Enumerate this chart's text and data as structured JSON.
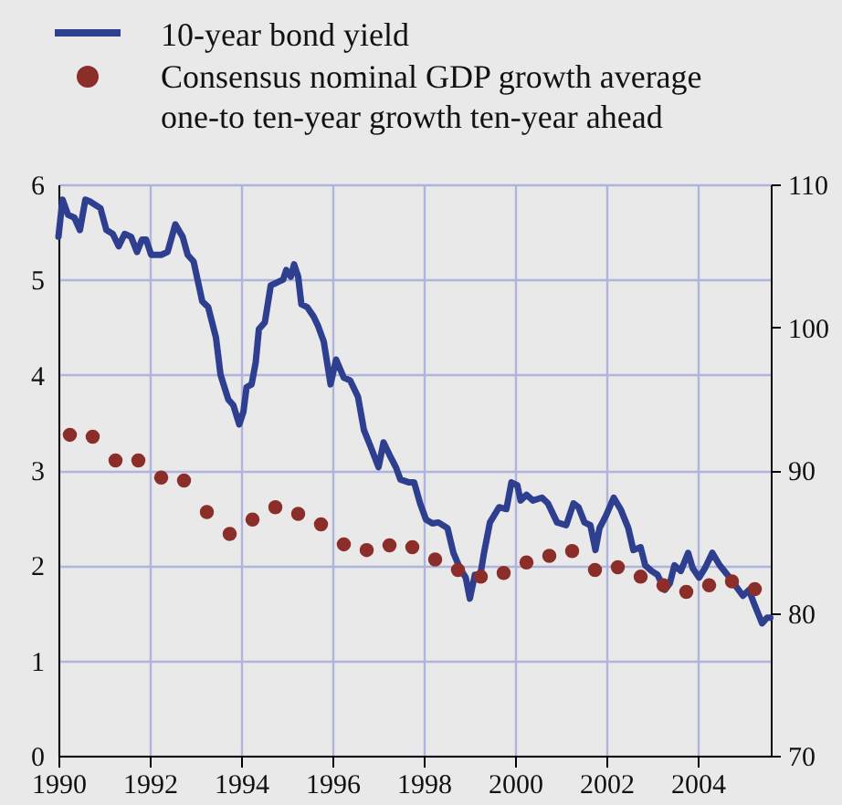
{
  "chart_data": {
    "type": "line",
    "xlim": [
      1990,
      2005.6
    ],
    "xticks": [
      1990,
      1992,
      1994,
      1996,
      1998,
      2000,
      2002,
      2004
    ],
    "ylim": [
      0,
      6
    ],
    "yticks": [
      0,
      1,
      2,
      3,
      4,
      5,
      6
    ],
    "y2lim": [
      70,
      110
    ],
    "y2ticks": [
      70,
      80,
      90,
      100,
      110
    ],
    "grid": true,
    "legend": "top left",
    "line_style": "solid",
    "series": [
      {
        "name": "10-year bond yield",
        "type": "line",
        "color": "#2e3f8f",
        "x": [
          1990.0,
          1990.09,
          1990.21,
          1990.35,
          1990.47,
          1990.59,
          1990.69,
          1990.92,
          1991.05,
          1991.19,
          1991.32,
          1991.45,
          1991.59,
          1991.72,
          1991.83,
          1991.92,
          1992.03,
          1992.25,
          1992.39,
          1992.56,
          1992.72,
          1992.83,
          1992.96,
          1993.15,
          1993.28,
          1993.45,
          1993.55,
          1993.72,
          1993.83,
          1993.96,
          1994.05,
          1994.12,
          1994.23,
          1994.32,
          1994.39,
          1994.52,
          1994.65,
          1994.79,
          1994.92,
          1994.99,
          1995.09,
          1995.16,
          1995.25,
          1995.32,
          1995.45,
          1995.59,
          1995.68,
          1995.81,
          1995.96,
          1996.08,
          1996.25,
          1996.39,
          1996.56,
          1996.69,
          1996.85,
          1997.01,
          1997.12,
          1997.25,
          1997.39,
          1997.49,
          1997.68,
          1997.79,
          1997.92,
          1998.05,
          1998.19,
          1998.32,
          1998.52,
          1998.65,
          1998.79,
          1998.92,
          1999.01,
          1999.12,
          1999.23,
          1999.32,
          1999.45,
          1999.65,
          1999.81,
          1999.92,
          2000.05,
          2000.12,
          2000.25,
          2000.39,
          2000.59,
          2000.72,
          2000.92,
          2001.12,
          2001.28,
          2001.39,
          2001.52,
          2001.65,
          2001.76,
          2001.85,
          2001.99,
          2002.16,
          2002.32,
          2002.48,
          2002.59,
          2002.75,
          2002.85,
          2002.99,
          2003.12,
          2003.28,
          2003.39,
          2003.49,
          2003.63,
          2003.79,
          2003.89,
          2004.03,
          2004.16,
          2004.32,
          2004.48,
          2004.65,
          2004.79,
          2004.99,
          2005.12,
          2005.25,
          2005.41,
          2005.52,
          2005.59
        ],
        "values": [
          5.45,
          5.84,
          5.68,
          5.65,
          5.52,
          5.84,
          5.82,
          5.75,
          5.52,
          5.48,
          5.35,
          5.48,
          5.45,
          5.29,
          5.42,
          5.42,
          5.26,
          5.26,
          5.29,
          5.58,
          5.45,
          5.26,
          5.19,
          4.77,
          4.71,
          4.39,
          4.0,
          3.74,
          3.68,
          3.48,
          3.61,
          3.87,
          3.9,
          4.13,
          4.48,
          4.55,
          4.94,
          4.97,
          5.0,
          5.1,
          5.03,
          5.16,
          5.03,
          4.74,
          4.71,
          4.61,
          4.52,
          4.35,
          3.9,
          4.16,
          3.97,
          3.94,
          3.77,
          3.42,
          3.23,
          3.03,
          3.29,
          3.16,
          3.03,
          2.9,
          2.87,
          2.87,
          2.65,
          2.48,
          2.44,
          2.45,
          2.39,
          2.13,
          1.97,
          1.87,
          1.65,
          1.9,
          1.87,
          2.13,
          2.45,
          2.61,
          2.59,
          2.87,
          2.84,
          2.68,
          2.74,
          2.68,
          2.71,
          2.65,
          2.45,
          2.42,
          2.65,
          2.61,
          2.45,
          2.42,
          2.16,
          2.39,
          2.52,
          2.71,
          2.58,
          2.39,
          2.16,
          2.19,
          2.0,
          1.94,
          1.9,
          1.74,
          1.81,
          2.0,
          1.94,
          2.13,
          1.97,
          1.87,
          1.97,
          2.13,
          2.0,
          1.9,
          1.81,
          1.68,
          1.74,
          1.58,
          1.39,
          1.45,
          1.45
        ]
      },
      {
        "name": "Consensus nominal GDP growth average one-to ten-year growth ten-year ahead",
        "type": "scatter",
        "marker": "circle",
        "color": "#8b2e2a",
        "x": [
          1990.25,
          1990.75,
          1991.25,
          1991.75,
          1992.25,
          1992.75,
          1993.25,
          1993.75,
          1994.25,
          1994.75,
          1995.25,
          1995.75,
          1996.25,
          1996.75,
          1997.25,
          1997.75,
          1998.25,
          1998.75,
          1999.25,
          1999.75,
          2000.25,
          2000.75,
          2001.25,
          2001.75,
          2002.25,
          2002.75,
          2003.25,
          2003.75,
          2004.25,
          2004.75,
          2005.25
        ],
        "values": [
          3.37,
          3.35,
          3.1,
          3.1,
          2.92,
          2.89,
          2.56,
          2.33,
          2.48,
          2.61,
          2.54,
          2.43,
          2.22,
          2.16,
          2.21,
          2.19,
          2.06,
          1.95,
          1.88,
          1.92,
          2.03,
          2.1,
          2.15,
          1.95,
          1.98,
          1.88,
          1.79,
          1.72,
          1.79,
          1.83,
          1.75
        ]
      }
    ]
  }
}
